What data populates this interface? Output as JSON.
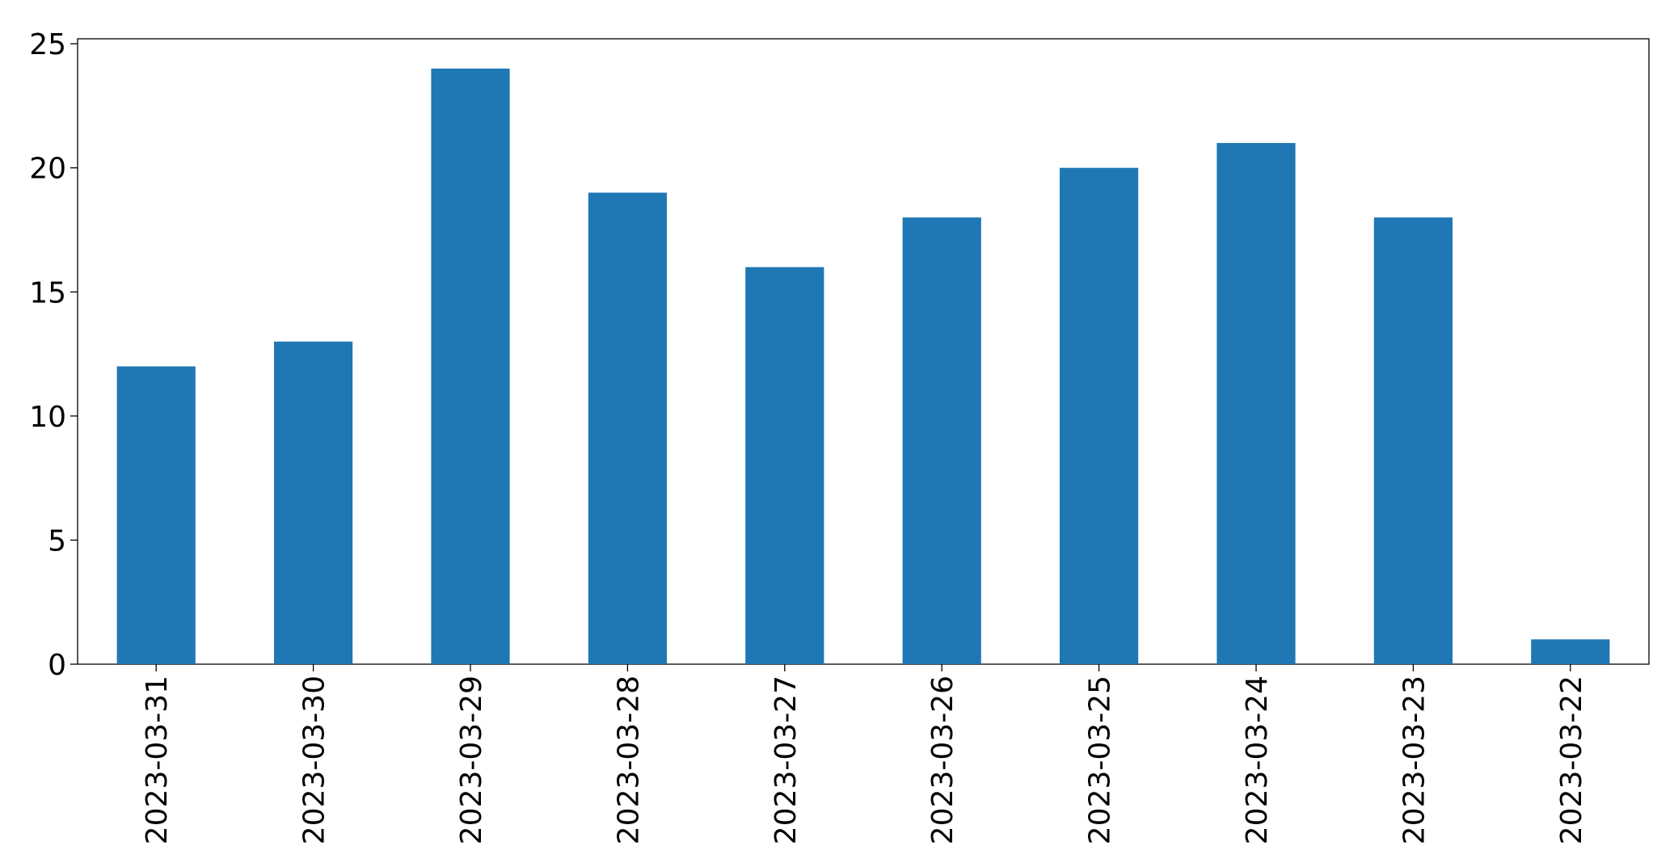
{
  "chart_data": {
    "type": "bar",
    "categories": [
      "2023-03-31",
      "2023-03-30",
      "2023-03-29",
      "2023-03-28",
      "2023-03-27",
      "2023-03-26",
      "2023-03-25",
      "2023-03-24",
      "2023-03-23",
      "2023-03-22"
    ],
    "values": [
      12,
      13,
      24,
      19,
      16,
      18,
      20,
      21,
      18,
      1
    ],
    "color": "#1f77b4",
    "ylim": [
      0,
      25.2
    ],
    "yticks": [
      0,
      5,
      10,
      15,
      20,
      25
    ],
    "grid": false
  }
}
